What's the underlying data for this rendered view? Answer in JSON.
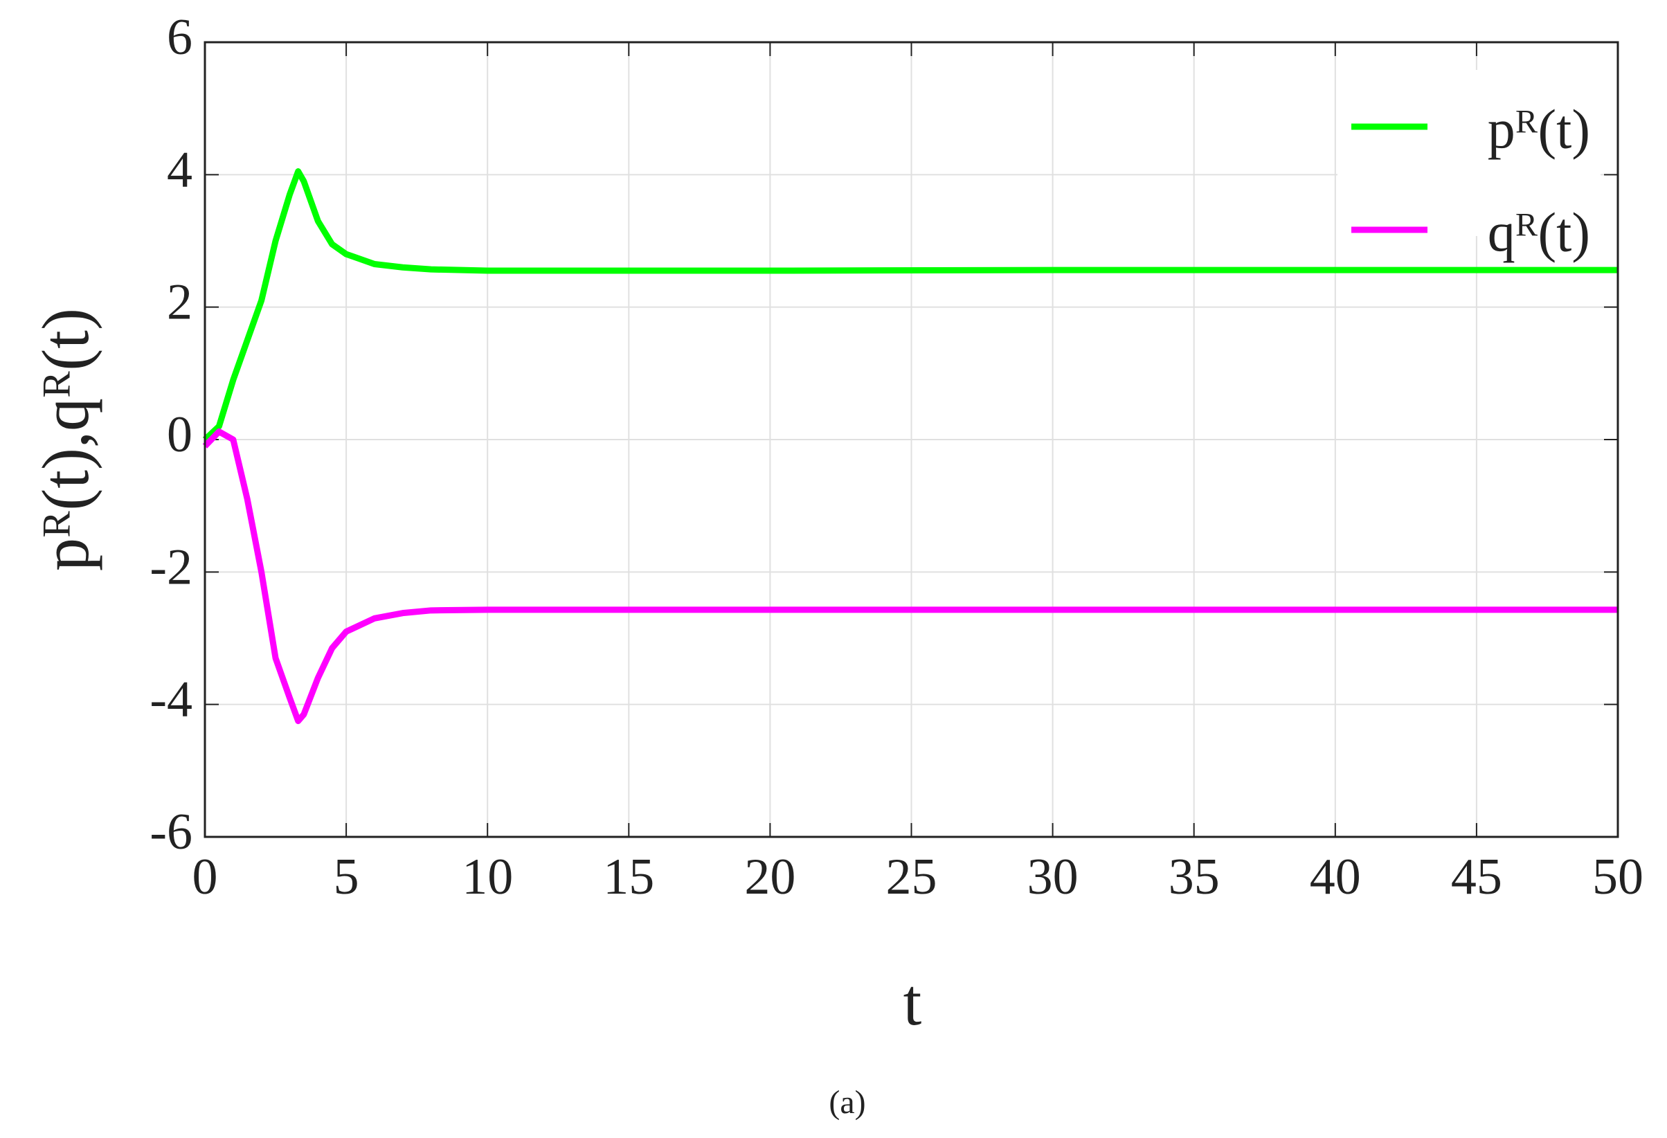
{
  "chart_data": {
    "type": "line",
    "xlabel": "t",
    "ylabel": "pᴿ(t),qᴿ(t)",
    "caption": "(a)",
    "x": [
      0,
      0.5,
      1,
      1.5,
      2,
      2.5,
      3,
      3.3,
      3.5,
      4,
      4.5,
      5,
      6,
      7,
      8,
      10,
      15,
      20,
      30,
      40,
      50
    ],
    "series": [
      {
        "name": "pᴿ(t)",
        "color": "#00ff00",
        "values": [
          0,
          0.2,
          0.9,
          1.5,
          2.1,
          3.0,
          3.7,
          4.05,
          3.9,
          3.3,
          2.95,
          2.8,
          2.65,
          2.6,
          2.57,
          2.55,
          2.55,
          2.55,
          2.56,
          2.56,
          2.56
        ]
      },
      {
        "name": "qᴿ(t)",
        "color": "#ff00ff",
        "values": [
          -0.1,
          0.12,
          0.0,
          -0.9,
          -2.0,
          -3.3,
          -3.9,
          -4.25,
          -4.15,
          -3.6,
          -3.15,
          -2.9,
          -2.7,
          -2.62,
          -2.58,
          -2.57,
          -2.57,
          -2.57,
          -2.57,
          -2.57,
          -2.57
        ]
      }
    ],
    "xlim": [
      0,
      50
    ],
    "xticks": [
      0,
      5,
      10,
      15,
      20,
      25,
      30,
      35,
      40,
      45,
      50
    ],
    "ylim": [
      -6,
      6
    ],
    "yticks": [
      -6,
      -4,
      -2,
      0,
      2,
      4,
      6
    ],
    "grid": true,
    "legend": "upper-right"
  }
}
